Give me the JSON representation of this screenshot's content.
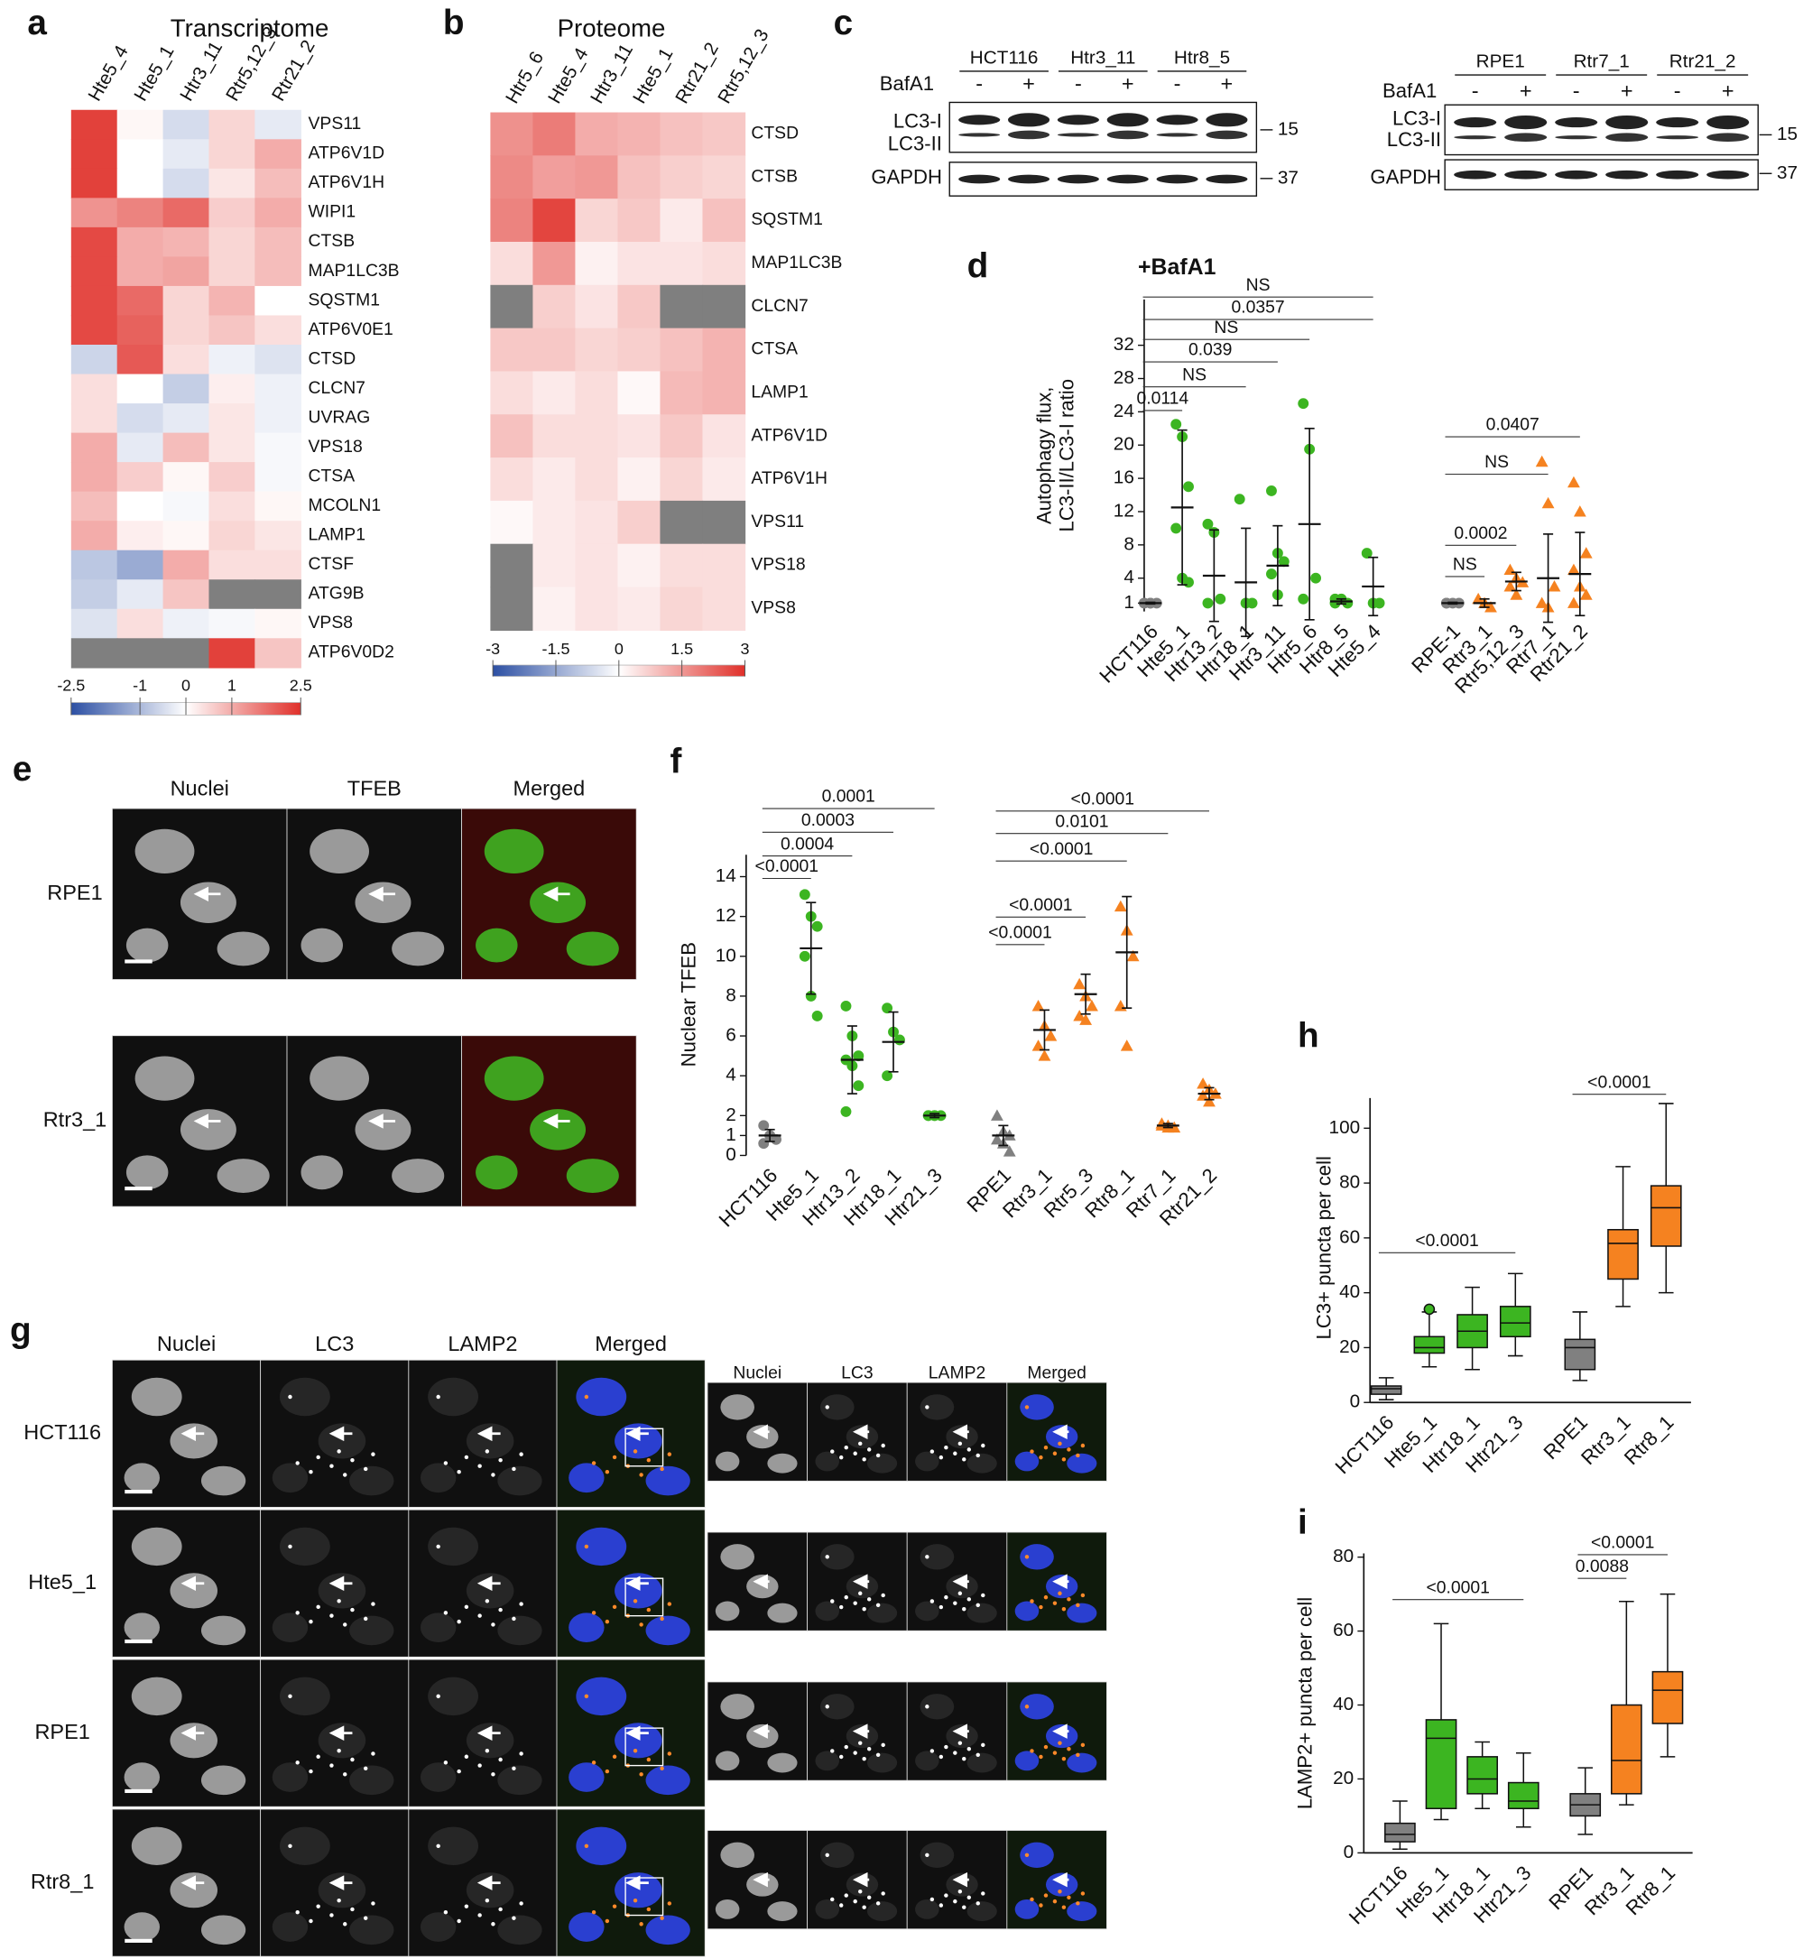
{
  "chart_data": [
    {
      "panel": "a",
      "type": "heatmap",
      "title": "Transcriptome",
      "columns": [
        "Hte5_4",
        "Hte5_1",
        "Htr3_11",
        "Rtr5,12_3",
        "Rtr21_2"
      ],
      "rows": [
        "VPS11",
        "ATP6V1D",
        "ATP6V1H",
        "WIPI1",
        "CTSB",
        "MAP1LC3B",
        "SQSTM1",
        "ATP6V0E1",
        "CTSD",
        "CLCN7",
        "UVRAG",
        "VPS18",
        "CTSA",
        "MCOLN1",
        "LAMP1",
        "CTSF",
        "ATG9B",
        "VPS8",
        "ATP6V0D2"
      ],
      "values": [
        [
          2.3,
          0.1,
          -0.5,
          0.5,
          -0.3
        ],
        [
          2.3,
          0,
          -0.3,
          0.5,
          1.0
        ],
        [
          2.3,
          0,
          -0.5,
          0.3,
          0.8
        ],
        [
          1.3,
          1.5,
          1.8,
          0.6,
          1.0
        ],
        [
          2.2,
          1.0,
          0.9,
          0.5,
          0.8
        ],
        [
          2.2,
          1.0,
          1.1,
          0.5,
          0.8
        ],
        [
          2.2,
          1.8,
          0.5,
          0.9,
          0
        ],
        [
          2.2,
          1.9,
          0.5,
          0.7,
          0.4
        ],
        [
          -0.6,
          2.0,
          0.4,
          -0.2,
          -0.4
        ],
        [
          0.4,
          0,
          -0.7,
          0.2,
          -0.2
        ],
        [
          0.4,
          -0.5,
          -0.3,
          0.3,
          -0.2
        ],
        [
          1.0,
          -0.3,
          0.8,
          0.3,
          -0.1
        ],
        [
          1.0,
          0.6,
          0.1,
          0.6,
          -0.1
        ],
        [
          0.8,
          0,
          -0.1,
          0.4,
          0.1
        ],
        [
          1.0,
          0.2,
          0.1,
          0.5,
          0.3
        ],
        [
          -0.8,
          -1.2,
          1.0,
          0.4,
          0.4
        ],
        [
          -0.7,
          -0.3,
          0.7,
          null,
          null
        ],
        [
          -0.4,
          0.4,
          -0.2,
          -0.1,
          0.1
        ],
        [
          null,
          null,
          null,
          2.3,
          0.7
        ]
      ],
      "clim": [
        -2.5,
        2.5
      ],
      "colorbar_ticks": [
        -2.5,
        -1,
        0,
        1,
        2.5
      ],
      "low_color": "#2c4fa3",
      "high_color": "#e0302a",
      "null_color": "#7f7f7f"
    },
    {
      "panel": "b",
      "type": "heatmap",
      "title": "Proteome",
      "columns": [
        "Htr5_6",
        "Hte5_4",
        "Htr3_11",
        "Hte5_1",
        "Rtr21_2",
        "Rtr5,12_3"
      ],
      "rows": [
        "CTSD",
        "CTSB",
        "SQSTM1",
        "MAP1LC3B",
        "CLCN7",
        "CTSA",
        "LAMP1",
        "ATP6V1D",
        "ATP6V1H",
        "VPS11",
        "VPS18",
        "VPS8"
      ],
      "values": [
        [
          1.6,
          1.9,
          1.2,
          1.1,
          0.9,
          0.8
        ],
        [
          1.7,
          1.4,
          1.5,
          0.9,
          0.7,
          0.6
        ],
        [
          1.8,
          2.7,
          0.6,
          0.8,
          0.3,
          0.9
        ],
        [
          0.5,
          1.5,
          0.2,
          0.4,
          0.4,
          0.5
        ],
        [
          null,
          0.7,
          0.4,
          0.8,
          null,
          null
        ],
        [
          0.8,
          0.8,
          0.6,
          0.7,
          0.9,
          1.1
        ],
        [
          0.5,
          0.3,
          0.5,
          0.1,
          1.0,
          1.1
        ],
        [
          0.9,
          0.5,
          0.5,
          0.4,
          0.8,
          0.4
        ],
        [
          0.5,
          0.3,
          0.5,
          0.2,
          0.6,
          0.3
        ],
        [
          0.1,
          0.3,
          0.4,
          0.7,
          null,
          null
        ],
        [
          null,
          0.3,
          0.4,
          0.2,
          0.5,
          0.5
        ],
        [
          null,
          0.2,
          0.4,
          0.3,
          0.6,
          0.5
        ]
      ],
      "clim": [
        -3,
        3
      ],
      "colorbar_ticks": [
        -3,
        -1.5,
        0,
        1.5,
        3
      ],
      "low_color": "#2c4fa3",
      "high_color": "#e0302a",
      "null_color": "#7f7f7f"
    },
    {
      "panel": "d",
      "type": "dot",
      "title": "+BafA1",
      "ylabel": [
        "Autophagy flux,",
        "LC3-II/LC3-I ratio"
      ],
      "categories": [
        "HCT116",
        "Hte5_1",
        "Htr13_2",
        "Htr18_1",
        "Htr3_11",
        "Htr5_6",
        "Htr8_5",
        "Hte5_4",
        null,
        "RPE-1",
        "Rtr3_1",
        "Rtr5,12_3",
        "Rtr7_1",
        "Rtr21_2"
      ],
      "colors": [
        "#808080",
        "#3cb521",
        "#3cb521",
        "#3cb521",
        "#3cb521",
        "#3cb521",
        "#3cb521",
        "#3cb521",
        null,
        "#808080",
        "#f58220",
        "#f58220",
        "#f58220",
        "#f58220"
      ],
      "markers": [
        "circle",
        "circle",
        "circle",
        "circle",
        "circle",
        "circle",
        "circle",
        "circle",
        null,
        "circle",
        "triangle",
        "triangle",
        "triangle",
        "triangle"
      ],
      "points": [
        [
          1,
          1,
          1,
          1,
          1
        ],
        [
          22.5,
          21,
          15,
          10,
          4,
          3.5
        ],
        [
          10.5,
          9.5,
          1.5,
          1
        ],
        [
          13.5,
          1,
          1
        ],
        [
          14.5,
          7,
          6,
          4.5,
          2
        ],
        [
          25,
          19.5,
          4,
          1.5
        ],
        [
          1.5,
          1.5,
          1,
          1
        ],
        [
          7,
          1,
          1
        ],
        null,
        [
          1,
          1,
          1,
          1
        ],
        [
          1.5,
          1,
          0.5
        ],
        [
          5,
          4,
          3.5,
          3,
          2
        ],
        [
          18,
          13,
          3,
          1,
          0.5
        ],
        [
          15.5,
          12,
          7,
          5,
          3,
          2,
          1
        ]
      ],
      "means": [
        1,
        12.5,
        4.3,
        3.5,
        5.5,
        10.5,
        1.2,
        3,
        null,
        1,
        1,
        3.6,
        4,
        4.5
      ],
      "sds": [
        0.1,
        9.3,
        5.5,
        6.5,
        4.8,
        11.5,
        0.3,
        3.5,
        null,
        0.1,
        0.5,
        1.1,
        5.3,
        5
      ],
      "ylim": [
        0,
        37.5
      ],
      "yticks": [
        1,
        4,
        8,
        12,
        16,
        20,
        24,
        28,
        32
      ],
      "brackets": [
        {
          "from": "HCT116",
          "to": "Hte5_1",
          "label": "0.0114"
        },
        {
          "from": "HCT116",
          "to": "Htr18_1",
          "label": "NS"
        },
        {
          "from": "HCT116",
          "to": "Htr3_11",
          "label": "0.039"
        },
        {
          "from": "HCT116",
          "to": "Htr5_6",
          "label": "NS"
        },
        {
          "from": "HCT116",
          "to": "Hte5_4",
          "label": "0.0357"
        },
        {
          "from": "HCT116",
          "to": "Hte5_4",
          "label": "NS"
        },
        {
          "from": "RPE-1",
          "to": "Rtr3_1",
          "label": "NS"
        },
        {
          "from": "RPE-1",
          "to": "Rtr5,12_3",
          "label": "0.0002"
        },
        {
          "from": "RPE-1",
          "to": "Rtr7_1",
          "label": "NS"
        },
        {
          "from": "RPE-1",
          "to": "Rtr21_2",
          "label": "0.0407"
        }
      ]
    },
    {
      "panel": "f",
      "type": "dot",
      "ylabel": "Nuclear TFEB",
      "categories": [
        "HCT116",
        "Hte5_1",
        "Htr13_2",
        "Htr18_1",
        "Htr21_3",
        null,
        "RPE1",
        "Rtr3_1",
        "Rtr5_3",
        "Rtr8_1",
        "Rtr7_1",
        "Rtr21_2"
      ],
      "colors": [
        "#808080",
        "#3cb521",
        "#3cb521",
        "#3cb521",
        "#3cb521",
        null,
        "#808080",
        "#f58220",
        "#f58220",
        "#f58220",
        "#f58220",
        "#f58220"
      ],
      "markers": [
        "circle",
        "circle",
        "circle",
        "circle",
        "circle",
        null,
        "triangle",
        "triangle",
        "triangle",
        "triangle",
        "triangle",
        "triangle"
      ],
      "points": [
        [
          1.5,
          1,
          0.8,
          0.6,
          1
        ],
        [
          13.1,
          12,
          11.5,
          10,
          8,
          7
        ],
        [
          7.5,
          6,
          5,
          4.8,
          4.5,
          3.5,
          2.2
        ],
        [
          7.4,
          6.2,
          5.8,
          4
        ],
        [
          2,
          2,
          2,
          2,
          2
        ],
        null,
        [
          2,
          1.2,
          1,
          0.8,
          0.6,
          0.2
        ],
        [
          7.5,
          6.5,
          6,
          5.5,
          5
        ],
        [
          8.6,
          8,
          7.5,
          7,
          6.8
        ],
        [
          12.5,
          11.3,
          10,
          7.5,
          5.5
        ],
        [
          1.6,
          1.5,
          1.4,
          1.5,
          1.4
        ],
        [
          3.6,
          3.3,
          3.1,
          3,
          2.7
        ]
      ],
      "means": [
        1,
        10.4,
        4.8,
        5.7,
        2,
        null,
        1,
        6.3,
        8.1,
        10.2,
        1.5,
        3.1
      ],
      "sds": [
        0.3,
        2.3,
        1.7,
        1.5,
        0.1,
        null,
        0.5,
        1,
        1,
        2.8,
        0.1,
        0.3
      ],
      "ylim": [
        0,
        15.1
      ],
      "yticks": [
        0,
        1,
        2,
        4,
        6,
        8,
        10,
        12,
        14
      ],
      "brackets": [
        {
          "from": "HCT116",
          "to": "Hte5_1",
          "label": "<0.0001"
        },
        {
          "from": "HCT116",
          "to": "Htr13_2",
          "label": "0.0004"
        },
        {
          "from": "HCT116",
          "to": "Htr18_1",
          "label": "0.0003"
        },
        {
          "from": "HCT116",
          "to": "Htr21_3",
          "label": "0.0001"
        },
        {
          "from": "RPE1",
          "to": "Rtr3_1",
          "label": "<0.0001"
        },
        {
          "from": "RPE1",
          "to": "Rtr5_3",
          "label": "<0.0001"
        },
        {
          "from": "RPE1",
          "to": "Rtr8_1",
          "label": "<0.0001"
        },
        {
          "from": "RPE1",
          "to": "Rtr7_1",
          "label": "0.0101"
        },
        {
          "from": "RPE1",
          "to": "Rtr21_2",
          "label": "<0.0001"
        }
      ]
    },
    {
      "panel": "h",
      "type": "box",
      "ylabel": "LC3+ puncta per cell",
      "categories": [
        "HCT116",
        "Hte5_1",
        "Htr18_1",
        "Htr21_3",
        null,
        "RPE1",
        "Rtr3_1",
        "Rtr8_1"
      ],
      "colors": [
        "#808080",
        "#3cb521",
        "#3cb521",
        "#3cb521",
        null,
        "#808080",
        "#f58220",
        "#f58220"
      ],
      "boxes": [
        {
          "min": 1,
          "q1": 3,
          "median": 5,
          "q3": 6,
          "max": 9
        },
        {
          "min": 13,
          "q1": 18,
          "median": 20,
          "q3": 24,
          "max": 33
        },
        {
          "min": 12,
          "q1": 20,
          "median": 26,
          "q3": 32,
          "max": 42
        },
        {
          "min": 17,
          "q1": 24,
          "median": 29,
          "q3": 35,
          "max": 47
        },
        null,
        {
          "min": 8,
          "q1": 12,
          "median": 20,
          "q3": 23,
          "max": 33
        },
        {
          "min": 35,
          "q1": 45,
          "median": 58,
          "q3": 63,
          "max": 86
        },
        {
          "min": 40,
          "q1": 57,
          "median": 71,
          "q3": 79,
          "max": 109
        }
      ],
      "outliers": [
        [],
        [
          34
        ],
        [],
        [],
        null,
        [],
        [],
        []
      ],
      "ylim": [
        0,
        111
      ],
      "yticks": [
        0,
        20,
        40,
        60,
        80,
        100
      ],
      "brackets": [
        {
          "from": "HCT116",
          "to": "Htr21_3",
          "label": "<0.0001"
        },
        {
          "from": "RPE1",
          "to": "Rtr8_1",
          "label": "<0.0001"
        }
      ]
    },
    {
      "panel": "i",
      "type": "box",
      "ylabel": "LAMP2+ puncta per cell",
      "categories": [
        "HCT116",
        "Hte5_1",
        "Htr18_1",
        "Htr21_3",
        null,
        "RPE1",
        "Rtr3_1",
        "Rtr8_1"
      ],
      "colors": [
        "#808080",
        "#3cb521",
        "#3cb521",
        "#3cb521",
        null,
        "#808080",
        "#f58220",
        "#f58220"
      ],
      "boxes": [
        {
          "min": 1,
          "q1": 3,
          "median": 5,
          "q3": 8,
          "max": 14
        },
        {
          "min": 9,
          "q1": 12,
          "median": 31,
          "q3": 36,
          "max": 62
        },
        {
          "min": 12,
          "q1": 16,
          "median": 20,
          "q3": 26,
          "max": 30
        },
        {
          "min": 7,
          "q1": 12,
          "median": 14,
          "q3": 19,
          "max": 27
        },
        null,
        {
          "min": 5,
          "q1": 10,
          "median": 13,
          "q3": 16,
          "max": 23
        },
        {
          "min": 13,
          "q1": 16,
          "median": 25,
          "q3": 40,
          "max": 68
        },
        {
          "min": 26,
          "q1": 35,
          "median": 44,
          "q3": 49,
          "max": 70
        }
      ],
      "outliers": [
        [],
        [],
        [],
        [],
        null,
        [],
        [],
        []
      ],
      "ylim": [
        0,
        81
      ],
      "yticks": [
        0,
        20,
        40,
        60,
        80
      ],
      "brackets": [
        {
          "from": "HCT116",
          "to": "Htr21_3",
          "label": "<0.0001"
        },
        {
          "from": "RPE1",
          "to": "Rtr3_1",
          "label": "0.0088"
        },
        {
          "from": "RPE1",
          "to": "Rtr8_1",
          "label": "<0.0001"
        }
      ]
    }
  ],
  "blots": {
    "panel": "c",
    "blots": [
      {
        "samples": [
          "HCT116",
          "Htr3_11",
          "Htr8_5"
        ],
        "treatment": "BafA1",
        "signs": [
          "-",
          "+",
          "-",
          "+",
          "-",
          "+"
        ],
        "bands": [
          "LC3-I",
          "LC3-II",
          "GAPDH"
        ],
        "markers": [
          15,
          37
        ]
      },
      {
        "samples": [
          "RPE1",
          "Rtr7_1",
          "Rtr21_2"
        ],
        "treatment": "BafA1",
        "signs": [
          "-",
          "+",
          "-",
          "+",
          "-",
          "+"
        ],
        "bands": [
          "LC3-I",
          "LC3-II",
          "GAPDH"
        ],
        "markers": [
          15,
          37
        ]
      }
    ]
  },
  "micrographs": [
    {
      "panel": "e",
      "columns": [
        "Nuclei",
        "TFEB",
        "Merged"
      ],
      "rows": [
        "RPE1",
        "Rtr3_1"
      ]
    },
    {
      "panel": "g",
      "columns": [
        "Nuclei",
        "LC3",
        "LAMP2",
        "Merged"
      ],
      "rows": [
        "HCT116",
        "Hte5_1",
        "RPE1",
        "Rtr8_1"
      ],
      "inset_columns": [
        "Nuclei",
        "LC3",
        "LAMP2",
        "Merged"
      ]
    }
  ]
}
